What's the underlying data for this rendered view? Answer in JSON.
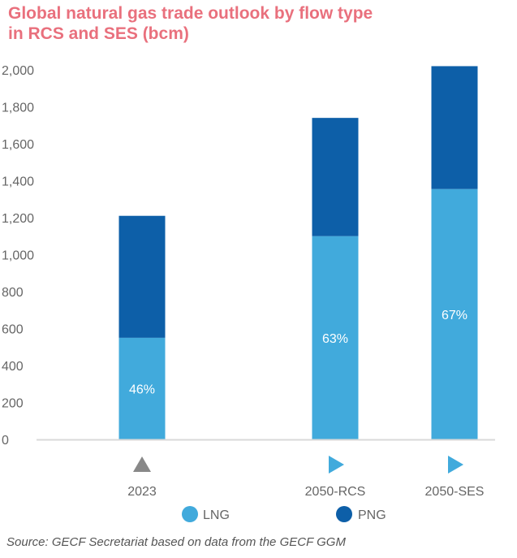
{
  "chart_data": {
    "type": "bar",
    "stacked": true,
    "title_lines": [
      "Global natural gas trade outlook by flow type",
      "in RCS and SES (bcm)"
    ],
    "categories": [
      "2023",
      "2050-RCS",
      "2050-SES"
    ],
    "series": [
      {
        "name": "LNG",
        "values": [
          550,
          1100,
          1355
        ],
        "color": "#41aadc"
      },
      {
        "name": "PNG",
        "values": [
          660,
          640,
          665
        ],
        "color": "#0d5fa8"
      }
    ],
    "lng_share_labels": [
      "46%",
      "63%",
      "67%"
    ],
    "ylim": [
      0,
      2000
    ],
    "y_ticks": [
      0,
      200,
      400,
      600,
      800,
      1000,
      1200,
      1400,
      1600,
      1800,
      2000
    ],
    "y_tick_labels": [
      "0",
      "200",
      "400",
      "600",
      "800",
      "1,000",
      "1,200",
      "1,400",
      "1,600",
      "1,800",
      "2,000"
    ],
    "markers": [
      {
        "category": "2023",
        "shape": "triangle-up",
        "color": "#888888"
      },
      {
        "category": "2050-RCS",
        "shape": "triangle-right",
        "color": "#41aadc"
      },
      {
        "category": "2050-SES",
        "shape": "triangle-right",
        "color": "#41aadc"
      }
    ],
    "legend": [
      "LNG",
      "PNG"
    ],
    "legend_position": "bottom",
    "grid": false
  },
  "colors": {
    "title": "#e9707d",
    "axis_text": "#666666",
    "axis_line": "#d9d9d9",
    "bar_label": "#ffffff"
  },
  "source": "Source: GECF Secretariat based on data from the GECF GGM"
}
